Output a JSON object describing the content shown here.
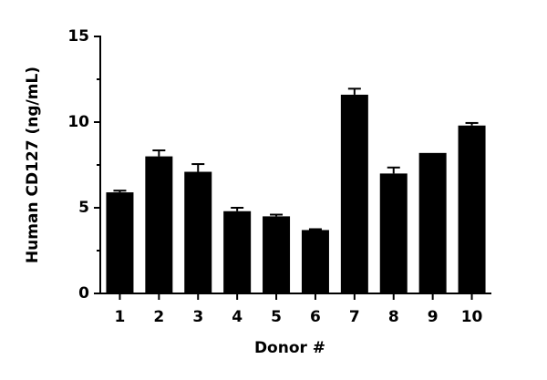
{
  "chart_data": {
    "type": "bar",
    "xlabel": "Donor #",
    "ylabel": "Human CD127 (ng/mL)",
    "categories": [
      "1",
      "2",
      "3",
      "4",
      "5",
      "6",
      "7",
      "8",
      "9",
      "10"
    ],
    "values": [
      5.9,
      8.0,
      7.1,
      4.8,
      4.5,
      3.7,
      11.6,
      7.0,
      8.2,
      9.8
    ],
    "errors": [
      0.1,
      0.35,
      0.45,
      0.2,
      0.1,
      0.05,
      0.35,
      0.35,
      0,
      0.15
    ],
    "color": "#000000",
    "ylim": [
      0,
      15
    ],
    "yticks": [
      0,
      5,
      10,
      15
    ],
    "yminorticks": [
      2.5,
      7.5,
      12.5
    ]
  }
}
